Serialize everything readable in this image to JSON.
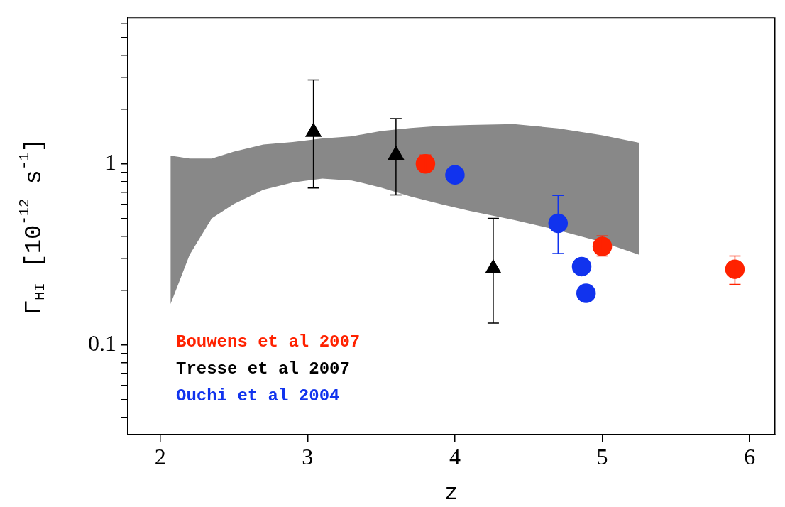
{
  "chart_data": {
    "type": "scatter",
    "xlabel": "z",
    "ylabel": "Γ$_{HI}$ [10$^{-12}$ s$^{-1}$]",
    "log": "y",
    "grid": false,
    "legend": "bottom left",
    "xlim": [
      1.78,
      6.17
    ],
    "xticks": [
      2,
      3,
      4,
      5,
      6
    ],
    "ylim": [
      0.032,
      6.4
    ],
    "yticks": [
      {
        "value": 0.04,
        "label": null
      },
      {
        "value": 0.05,
        "label": null
      },
      {
        "value": 0.06,
        "label": null
      },
      {
        "value": 0.07,
        "label": null
      },
      {
        "value": 0.08,
        "label": null
      },
      {
        "value": 0.09,
        "label": null
      },
      0.1,
      {
        "value": 0.2,
        "label": null
      },
      {
        "value": 0.3,
        "label": null
      },
      {
        "value": 0.4,
        "label": null
      },
      {
        "value": 0.5,
        "label": null
      },
      {
        "value": 0.6,
        "label": null
      },
      {
        "value": 0.7,
        "label": null
      },
      {
        "value": 0.8,
        "label": null
      },
      {
        "value": 0.9,
        "label": null
      },
      1,
      {
        "value": 2,
        "label": null
      },
      {
        "value": 3,
        "label": null
      },
      {
        "value": 4,
        "label": null
      },
      {
        "value": 5,
        "label": null
      },
      {
        "value": 6,
        "label": null
      }
    ],
    "series": [
      {
        "type": "line",
        "color": "#888888",
        "x": [
          2.07,
          2.2,
          2.35,
          2.5,
          2.7,
          2.9,
          3.1,
          3.3,
          3.5,
          3.7,
          3.9,
          4.1,
          4.4,
          4.7,
          5.0,
          5.25
        ],
        "values": [
          null,
          null,
          null,
          null,
          null,
          null,
          null,
          null,
          null,
          null,
          null,
          null,
          null,
          null,
          null,
          null
        ],
        "lower": [
          0.168,
          0.315,
          0.5,
          0.6,
          0.72,
          0.79,
          0.83,
          0.81,
          0.74,
          0.66,
          0.6,
          0.55,
          0.49,
          0.43,
          0.37,
          0.315
        ],
        "upper": [
          1.11,
          1.07,
          1.07,
          1.17,
          1.28,
          1.32,
          1.38,
          1.42,
          1.52,
          1.58,
          1.62,
          1.64,
          1.66,
          1.57,
          1.44,
          1.31
        ]
      },
      {
        "name": "Bouwens et al 2007",
        "type": "scatter",
        "color": "#ff2200",
        "marker": "circle",
        "x": [
          3.8,
          5.0,
          5.9
        ],
        "values": [
          1.0,
          0.35,
          0.262
        ],
        "errors": [
          [
            0.91,
            1.12
          ],
          [
            0.31,
            0.4
          ],
          [
            0.216,
            0.31
          ]
        ]
      },
      {
        "name": "Tresse et al 2007",
        "type": "scatter",
        "color": "#000000",
        "marker": "triangle",
        "x": [
          3.04,
          3.6,
          4.26
        ],
        "values": [
          1.5,
          1.12,
          0.264
        ],
        "errors": [
          [
            0.736,
            2.91
          ],
          [
            0.674,
            1.78
          ],
          [
            0.132,
            0.5
          ]
        ]
      },
      {
        "name": "Ouchi et al 2004",
        "type": "scatter",
        "color": "#1133ee",
        "marker": "circle",
        "x": [
          4.0,
          4.7,
          4.86,
          4.89
        ],
        "values": [
          0.87,
          0.47,
          0.271,
          0.193
        ],
        "errors": [
          null,
          [
            0.32,
            0.67
          ],
          null,
          null
        ]
      }
    ]
  }
}
